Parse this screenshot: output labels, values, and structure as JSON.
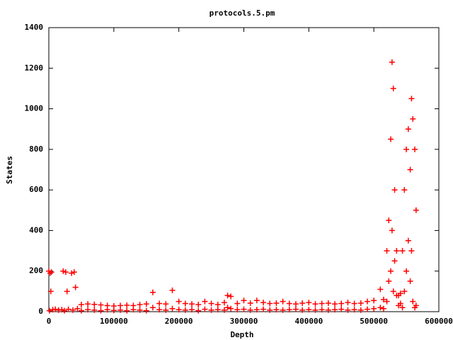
{
  "chart_data": {
    "type": "scatter",
    "title": "protocols.5.pm",
    "x_label": "Depth",
    "y_label": "States",
    "color": "#ff0000",
    "marker": "+",
    "xlim": [
      0,
      600000
    ],
    "xticks": [
      0,
      100000,
      200000,
      300000,
      400000,
      500000,
      600000
    ],
    "ylim": [
      0,
      1400
    ],
    "yticks": [
      0,
      200,
      400,
      600,
      800,
      1000,
      1200,
      1400
    ],
    "x": [
      0,
      1000,
      2000,
      3000,
      4000,
      6000,
      10000,
      15000,
      20000,
      22000,
      24000,
      26000,
      28000,
      30000,
      35000,
      37000,
      39000,
      41000,
      44000,
      50000,
      50000,
      60000,
      60000,
      70000,
      70000,
      80000,
      80000,
      90000,
      90000,
      100000,
      100000,
      110000,
      110000,
      120000,
      120000,
      130000,
      130000,
      140000,
      140000,
      150000,
      150000,
      160000,
      160000,
      170000,
      170000,
      180000,
      180000,
      190000,
      190000,
      200000,
      200000,
      210000,
      210000,
      220000,
      220000,
      230000,
      230000,
      240000,
      240000,
      250000,
      250000,
      260000,
      260000,
      270000,
      270000,
      275000,
      275000,
      280000,
      280000,
      290000,
      290000,
      300000,
      300000,
      310000,
      310000,
      320000,
      320000,
      330000,
      330000,
      340000,
      340000,
      350000,
      350000,
      360000,
      360000,
      370000,
      370000,
      380000,
      380000,
      390000,
      390000,
      400000,
      400000,
      410000,
      410000,
      420000,
      420000,
      430000,
      430000,
      440000,
      440000,
      450000,
      450000,
      460000,
      460000,
      470000,
      470000,
      480000,
      480000,
      490000,
      490000,
      500000,
      500000,
      510000,
      510000,
      515000,
      515000,
      520000,
      520000,
      523000,
      523000,
      526000,
      526000,
      528000,
      528000,
      530000,
      530000,
      532000,
      532000,
      535000,
      535000,
      538000,
      538000,
      541000,
      541000,
      544000,
      544000,
      547000,
      547000,
      550000,
      550000,
      553000,
      553000,
      556000,
      556000,
      558000,
      558000,
      560000,
      560000,
      563000,
      563000,
      565000,
      565000
    ],
    "values": [
      200,
      5,
      190,
      100,
      195,
      10,
      12,
      8,
      10,
      200,
      5,
      195,
      100,
      12,
      190,
      8,
      195,
      120,
      15,
      35,
      5,
      38,
      10,
      36,
      8,
      33,
      5,
      30,
      10,
      28,
      6,
      30,
      8,
      32,
      5,
      30,
      10,
      35,
      8,
      38,
      5,
      95,
      20,
      40,
      10,
      38,
      8,
      105,
      15,
      50,
      10,
      40,
      8,
      38,
      10,
      35,
      5,
      50,
      12,
      40,
      8,
      35,
      10,
      45,
      8,
      80,
      20,
      75,
      15,
      40,
      10,
      55,
      12,
      42,
      8,
      55,
      10,
      45,
      12,
      40,
      8,
      42,
      10,
      50,
      8,
      40,
      10,
      38,
      12,
      42,
      8,
      45,
      10,
      38,
      8,
      40,
      10,
      42,
      8,
      38,
      10,
      40,
      12,
      45,
      8,
      40,
      10,
      42,
      8,
      50,
      12,
      55,
      15,
      110,
      20,
      60,
      15,
      300,
      50,
      450,
      150,
      850,
      200,
      1230,
      400,
      1100,
      100,
      600,
      250,
      300,
      80,
      80,
      30,
      90,
      40,
      300,
      20,
      600,
      100,
      800,
      200,
      900,
      350,
      700,
      150,
      1050,
      300,
      950,
      50,
      800,
      20,
      500,
      30
    ]
  }
}
